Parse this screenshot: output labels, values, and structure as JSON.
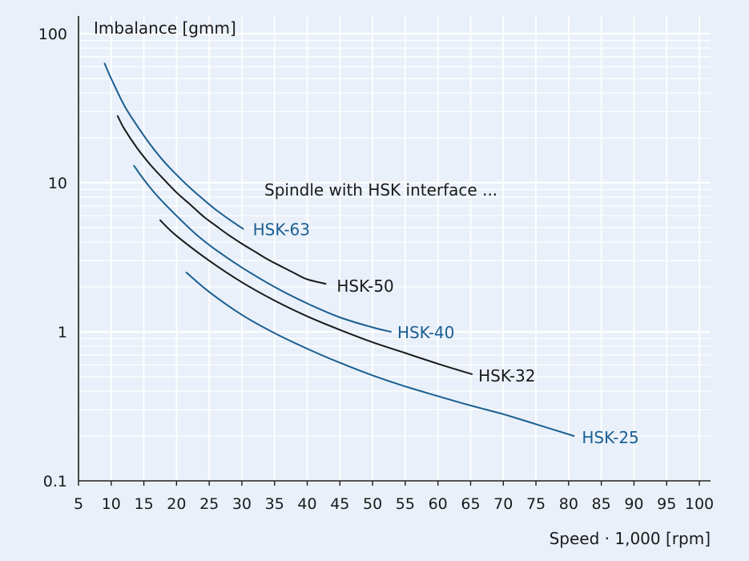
{
  "chart_data": {
    "type": "line",
    "title": "",
    "xlabel": "Speed · 1,000 [rpm]",
    "ylabel": "Imbalance [gmm]",
    "xlim": [
      5,
      100
    ],
    "ylim": [
      0.1,
      100
    ],
    "yscale": "log",
    "x_ticks": [
      "5",
      "10",
      "15",
      "20",
      "25",
      "30",
      "35",
      "40",
      "45",
      "50",
      "55",
      "60",
      "65",
      "70",
      "75",
      "80",
      "85",
      "90",
      "95",
      "100"
    ],
    "y_ticks": [
      "0.1",
      "1",
      "10",
      "100"
    ],
    "grid": true,
    "annotation": "Spindle with HSK interface ...",
    "series": [
      {
        "name": "HSK-63",
        "color": "#1a5e91",
        "x": [
          9,
          10,
          12,
          14,
          16,
          18,
          20,
          22,
          24,
          26,
          28,
          30.2
        ],
        "y": [
          63,
          50,
          33,
          24,
          18,
          14,
          11.3,
          9.3,
          7.8,
          6.6,
          5.7,
          4.9
        ]
      },
      {
        "name": "HSK-50",
        "color": "#1a1a1a",
        "x": [
          11,
          12,
          14,
          16,
          18,
          20,
          22,
          24,
          26,
          28,
          30,
          32,
          34,
          36,
          38,
          40,
          42.8
        ],
        "y": [
          28,
          23,
          17,
          13.2,
          10.6,
          8.6,
          7.2,
          6.0,
          5.15,
          4.45,
          3.9,
          3.45,
          3.05,
          2.75,
          2.48,
          2.25,
          2.1
        ]
      },
      {
        "name": "HSK-40",
        "color": "#1a5e91",
        "x": [
          13.5,
          15,
          17,
          20,
          23,
          26,
          30,
          35,
          40,
          45,
          50,
          52.8
        ],
        "y": [
          13,
          10.5,
          8.2,
          6.0,
          4.5,
          3.55,
          2.7,
          2.0,
          1.55,
          1.25,
          1.07,
          1.0
        ]
      },
      {
        "name": "HSK-32",
        "color": "#1a1a1a",
        "x": [
          17.5,
          20,
          25,
          30,
          35,
          40,
          45,
          50,
          55,
          60,
          65.2
        ],
        "y": [
          5.6,
          4.4,
          3.0,
          2.15,
          1.62,
          1.27,
          1.03,
          0.85,
          0.72,
          0.61,
          0.52
        ]
      },
      {
        "name": "HSK-25",
        "color": "#1a5e91",
        "x": [
          21.5,
          25,
          30,
          35,
          40,
          45,
          50,
          55,
          60,
          65,
          70,
          75,
          80.8
        ],
        "y": [
          2.5,
          1.85,
          1.3,
          0.98,
          0.77,
          0.62,
          0.51,
          0.43,
          0.37,
          0.32,
          0.28,
          0.24,
          0.2
        ]
      }
    ]
  }
}
